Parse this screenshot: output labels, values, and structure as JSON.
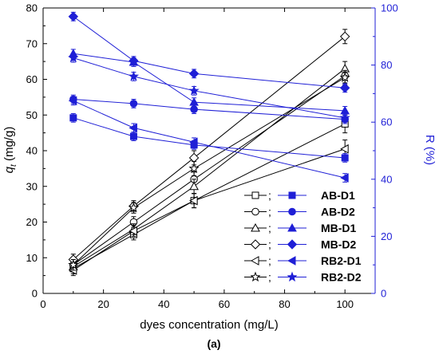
{
  "caption": "(a)",
  "chart_data": {
    "type": "line",
    "x": [
      10,
      30,
      50,
      100
    ],
    "xlabel": "dyes concentration (mg/L)",
    "xlim": [
      0,
      110
    ],
    "xticks": [
      0,
      20,
      40,
      60,
      80,
      100
    ],
    "ylabel_left_main": "q",
    "ylabel_left_sub": "t",
    "ylabel_left_unit": " (mg/g)",
    "ylim_left": [
      0,
      80
    ],
    "yticks_left": [
      0,
      10,
      20,
      30,
      40,
      50,
      60,
      70,
      80
    ],
    "ylabel_right": "R (%)",
    "ylim_right": [
      0,
      100
    ],
    "yticks_right": [
      0,
      20,
      40,
      60,
      80,
      100
    ],
    "colors": {
      "left": "#000000",
      "right": "#1f1fd6"
    },
    "legend_position": "bottom-right",
    "legend_separator": ";",
    "series_left": [
      {
        "name": "AB-D1",
        "marker": "square-open",
        "values": [
          7.0,
          16.5,
          26.0,
          47.5
        ],
        "errors": [
          1.5,
          1.5,
          2.0,
          2.5
        ]
      },
      {
        "name": "AB-D2",
        "marker": "circle-open",
        "values": [
          8.0,
          20.0,
          32.0,
          61.0
        ],
        "errors": [
          1.5,
          1.5,
          2.0,
          2.0
        ]
      },
      {
        "name": "MB-D1",
        "marker": "triangle-up-open",
        "values": [
          7.5,
          18.0,
          30.0,
          63.0
        ],
        "errors": [
          1.5,
          1.5,
          2.0,
          2.0
        ]
      },
      {
        "name": "MB-D2",
        "marker": "diamond-open",
        "values": [
          9.5,
          24.5,
          38.0,
          72.0
        ],
        "errors": [
          1.5,
          1.5,
          2.0,
          2.0
        ]
      },
      {
        "name": "RB2-D1",
        "marker": "triangle-left-open",
        "values": [
          6.5,
          17.5,
          26.0,
          40.5
        ],
        "errors": [
          1.5,
          1.5,
          2.0,
          2.5
        ]
      },
      {
        "name": "RB2-D2",
        "marker": "star-open",
        "values": [
          8.0,
          24.0,
          35.0,
          60.5
        ],
        "errors": [
          1.5,
          1.5,
          2.0,
          2.0
        ]
      }
    ],
    "series_right": [
      {
        "name": "AB-D1",
        "marker": "square",
        "values": [
          61.5,
          55.0,
          52.0,
          47.5
        ],
        "errors": [
          1.5,
          1.5,
          1.5,
          1.5
        ]
      },
      {
        "name": "AB-D2",
        "marker": "circle",
        "values": [
          68.0,
          66.5,
          64.5,
          61.0
        ],
        "errors": [
          1.5,
          1.5,
          1.5,
          1.5
        ]
      },
      {
        "name": "MB-D1",
        "marker": "triangle-up",
        "values": [
          84.0,
          81.0,
          67.0,
          64.0
        ],
        "errors": [
          1.5,
          1.5,
          1.5,
          1.5
        ]
      },
      {
        "name": "MB-D2",
        "marker": "diamond",
        "values": [
          97.0,
          81.5,
          77.0,
          72.0
        ],
        "errors": [
          1.5,
          1.5,
          1.5,
          1.5
        ]
      },
      {
        "name": "RB2-D1",
        "marker": "triangle-left",
        "values": [
          67.5,
          58.0,
          53.0,
          40.5
        ],
        "errors": [
          1.5,
          1.5,
          1.5,
          1.5
        ]
      },
      {
        "name": "RB2-D2",
        "marker": "star",
        "values": [
          82.5,
          76.0,
          71.0,
          61.5
        ],
        "errors": [
          1.5,
          1.5,
          1.5,
          1.5
        ]
      }
    ]
  }
}
